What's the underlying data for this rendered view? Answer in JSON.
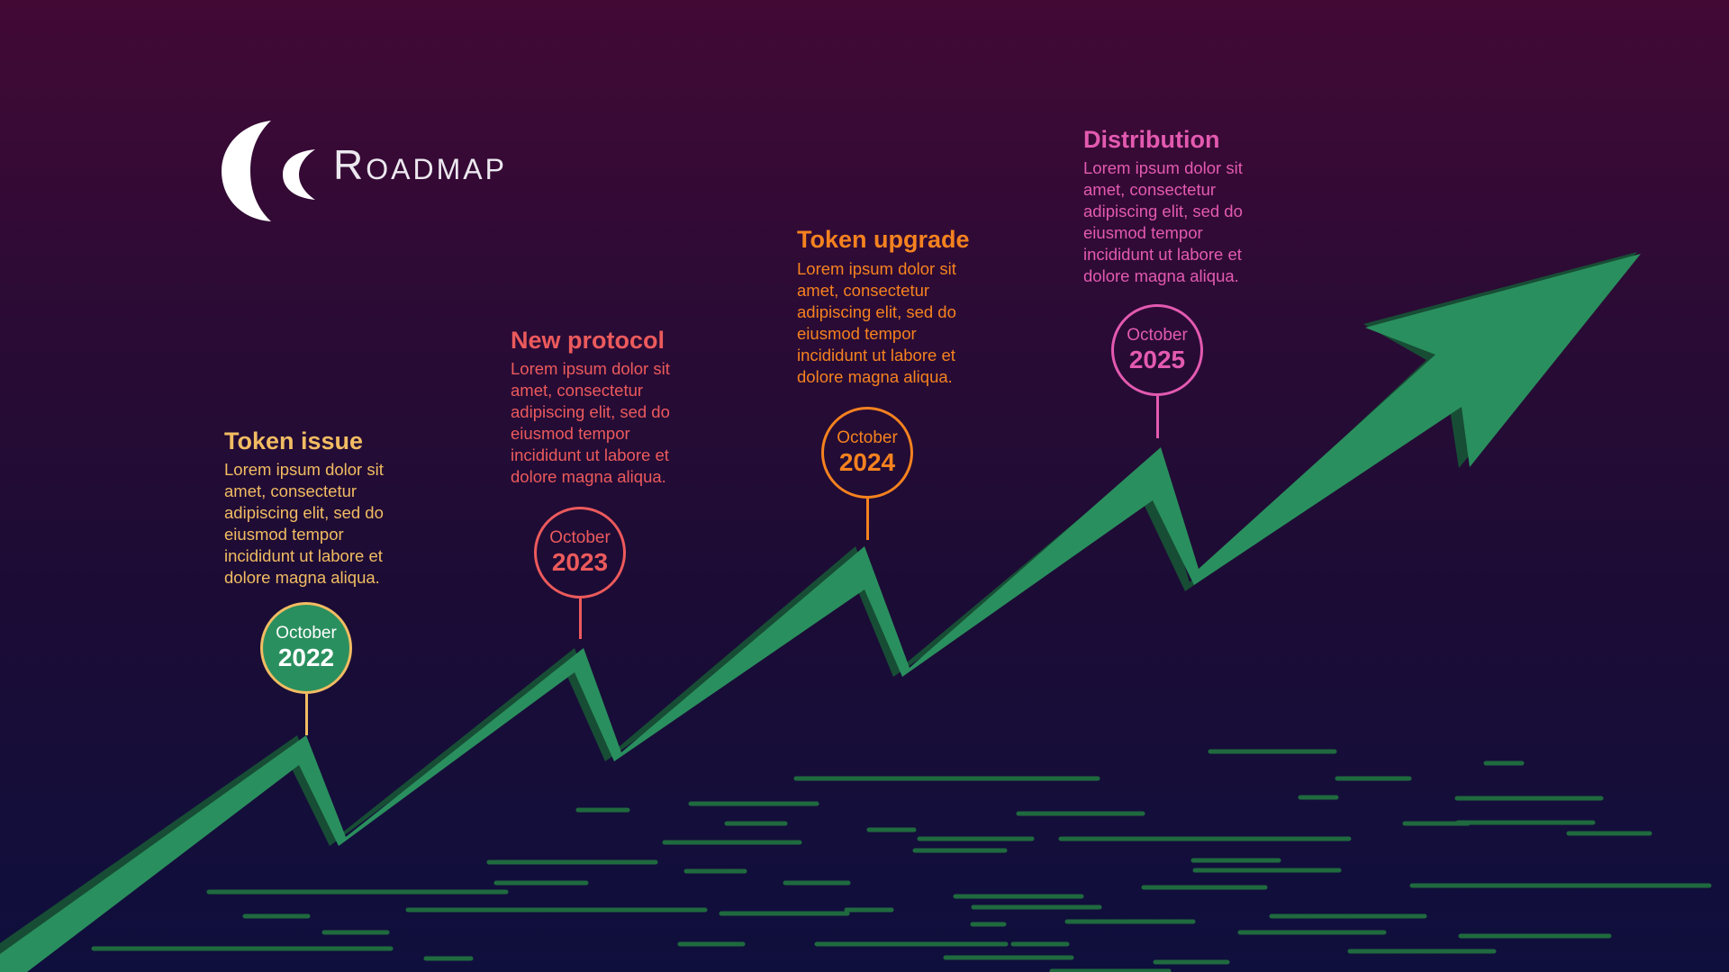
{
  "header": {
    "title": "Roadmap",
    "logo_icon": "crescent-logo-icon"
  },
  "colors": {
    "arrow": "#2a8f5e",
    "arrow_shadow": "#174d35",
    "streak": "#1f6a3e",
    "background_top": "#420935",
    "background_bottom": "#0f0f3d"
  },
  "milestones": [
    {
      "title": "Token issue",
      "description": "Lorem ipsum dolor sit amet, consectetur adipiscing elit, sed do eiusmod tempor incididunt ut labore et dolore magna aliqua.",
      "month": "October",
      "year": "2022",
      "color": "#f2bc62"
    },
    {
      "title": "New protocol",
      "description": "Lorem ipsum dolor sit amet, consectetur adipiscing elit, sed do eiusmod tempor incididunt ut labore et dolore magna aliqua.",
      "month": "October",
      "year": "2023",
      "color": "#ec5a5c"
    },
    {
      "title": "Token upgrade",
      "description": "Lorem ipsum dolor sit amet, consectetur adipiscing elit, sed do eiusmod tempor incididunt ut labore et dolore magna aliqua.",
      "month": "October",
      "year": "2024",
      "color": "#f5821f"
    },
    {
      "title": "Distribution",
      "description": "Lorem ipsum dolor sit amet, consectetur adipiscing elit, sed do eiusmod tempor incididunt ut labore et dolore magna aliqua.",
      "month": "October",
      "year": "2025",
      "color": "#e35ab0"
    }
  ]
}
